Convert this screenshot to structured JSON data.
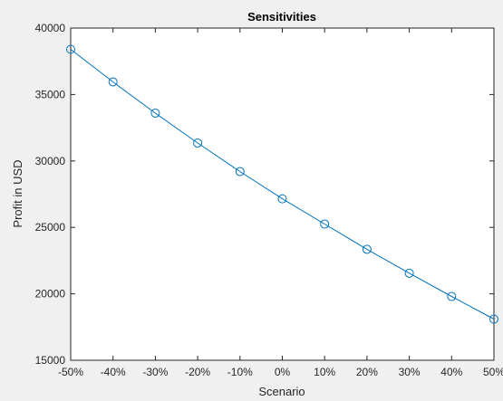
{
  "chart_data": {
    "type": "line",
    "title": "Sensitivities",
    "xlabel": "Scenario",
    "ylabel": "Profit in USD",
    "categories": [
      "-50%",
      "-40%",
      "-30%",
      "-20%",
      "-10%",
      "0%",
      "10%",
      "20%",
      "30%",
      "40%",
      "50%"
    ],
    "series": [
      {
        "values": [
          38400,
          35950,
          33600,
          31350,
          29200,
          27150,
          25250,
          23350,
          21550,
          19800,
          18100
        ]
      }
    ],
    "ylim": [
      15000,
      40000
    ],
    "yticks": [
      15000,
      20000,
      25000,
      30000,
      35000,
      40000
    ],
    "grid": false,
    "legend": "none",
    "markers": "circle-open",
    "colors": {
      "background": "#f0f0f0",
      "plot_area": "#ffffff",
      "series": "#0072bd",
      "axis": "#262626"
    }
  }
}
